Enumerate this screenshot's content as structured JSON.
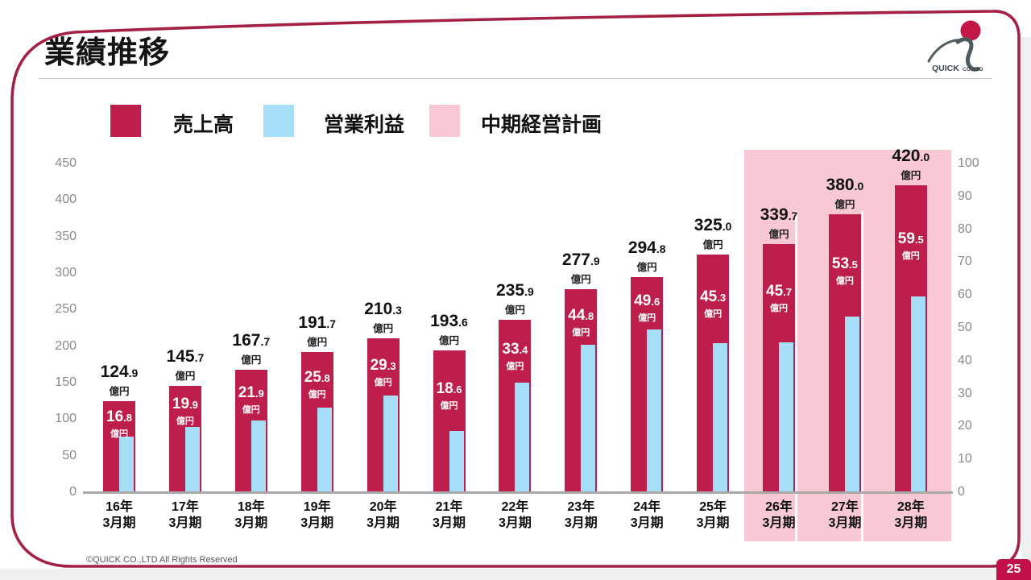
{
  "slide": {
    "title": "業績推移",
    "footer": "©QUICK CO.,LTD All Rights Reserved",
    "page_number": "25",
    "logo": {
      "company": "QUICK",
      "suffix": "CO.,LTD"
    },
    "accent_colors": {
      "frame_red": "#a52045",
      "badge_red": "#c21148"
    }
  },
  "legend": {
    "items": [
      {
        "label": "売上高",
        "color": "#be1e4b"
      },
      {
        "label": "営業利益",
        "color": "#a6def7"
      },
      {
        "label": "中期経営計画",
        "color": "#f8c9d5"
      }
    ]
  },
  "chart_data": {
    "type": "bar",
    "title": "業績推移",
    "value_suffix": "億円",
    "categories": [
      [
        "16年",
        "3月期"
      ],
      [
        "17年",
        "3月期"
      ],
      [
        "18年",
        "3月期"
      ],
      [
        "19年",
        "3月期"
      ],
      [
        "20年",
        "3月期"
      ],
      [
        "21年",
        "3月期"
      ],
      [
        "22年",
        "3月期"
      ],
      [
        "23年",
        "3月期"
      ],
      [
        "24年",
        "3月期"
      ],
      [
        "25年",
        "3月期"
      ],
      [
        "26年",
        "3月期"
      ],
      [
        "27年",
        "3月期"
      ],
      [
        "28年",
        "3月期"
      ]
    ],
    "series": [
      {
        "name": "売上高",
        "axis": "left",
        "color": "#be1e4b",
        "values": [
          124.9,
          145.7,
          167.7,
          191.7,
          210.3,
          193.6,
          235.9,
          277.9,
          294.8,
          325.0,
          339.7,
          380.0,
          420.0
        ]
      },
      {
        "name": "営業利益",
        "axis": "right",
        "color": "#a6def7",
        "values": [
          16.8,
          19.9,
          21.9,
          25.8,
          29.3,
          18.6,
          33.4,
          44.8,
          49.6,
          45.3,
          45.7,
          53.5,
          59.5
        ]
      }
    ],
    "left_axis": {
      "min": 0,
      "max": 450,
      "step": 50
    },
    "right_axis": {
      "min": 0,
      "max": 100,
      "step": 10
    },
    "grid": false,
    "legend_position": "top",
    "highlight": {
      "name": "中期経営計画",
      "color": "#f8c9d5",
      "start_index": 10,
      "categories": [
        "26年3月期",
        "27年3月期",
        "28年3月期"
      ]
    }
  }
}
